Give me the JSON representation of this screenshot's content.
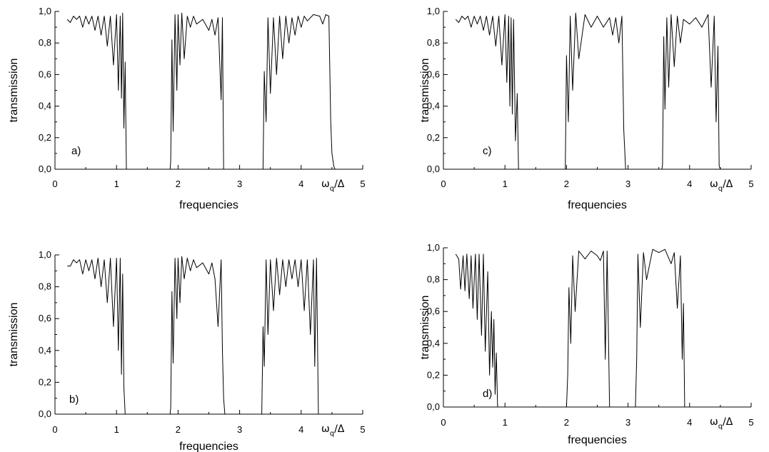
{
  "figure": {
    "xlabel": "frequencies",
    "ylabel": "transmission",
    "xunit_label": "ω",
    "xunit_sub": "q",
    "xunit_tail": "/Δ"
  },
  "chart_data": [
    {
      "type": "line",
      "panel_label": "a)",
      "xlabel": "frequencies",
      "ylabel": "transmission",
      "xlim": [
        0,
        5
      ],
      "ylim": [
        0,
        1
      ],
      "xticks": [
        "0",
        "1",
        "2",
        "3",
        "4",
        "5"
      ],
      "yticks": [
        "0,0",
        "0,2",
        "0,4",
        "0,6",
        "0,8",
        "1,0"
      ],
      "grid": false,
      "series": [
        {
          "x": [
            0.2,
            0.25,
            0.3,
            0.35,
            0.4,
            0.45,
            0.5,
            0.55,
            0.6,
            0.65,
            0.7,
            0.75,
            0.8,
            0.85,
            0.9,
            0.95,
            1.0,
            1.03,
            1.06,
            1.08,
            1.1,
            1.12,
            1.14,
            1.16,
            1.18,
            1.2,
            1.87,
            1.88,
            1.9,
            1.92,
            1.95,
            1.98,
            2.0,
            2.03,
            2.06,
            2.1,
            2.15,
            2.2,
            2.25,
            2.3,
            2.4,
            2.5,
            2.55,
            2.6,
            2.65,
            2.7,
            2.72,
            2.74,
            2.76,
            2.78,
            3.38,
            3.4,
            3.43,
            3.46,
            3.5,
            3.55,
            3.6,
            3.65,
            3.7,
            3.75,
            3.8,
            3.85,
            3.9,
            3.95,
            4.0,
            4.05,
            4.1,
            4.2,
            4.3,
            4.35,
            4.4,
            4.45,
            4.48,
            4.5,
            4.53,
            4.55
          ],
          "y": [
            0.95,
            0.93,
            0.97,
            0.95,
            0.97,
            0.9,
            0.97,
            0.92,
            0.97,
            0.88,
            0.97,
            0.85,
            0.97,
            0.78,
            0.97,
            0.66,
            0.98,
            0.5,
            0.97,
            0.45,
            0.99,
            0.26,
            0.68,
            0.0,
            0.0,
            0.0,
            0.0,
            0.05,
            0.82,
            0.24,
            0.98,
            0.5,
            0.98,
            0.66,
            0.99,
            0.7,
            0.97,
            0.9,
            0.97,
            0.92,
            0.95,
            0.88,
            0.95,
            0.85,
            0.96,
            0.44,
            0.96,
            0.0,
            0.0,
            0.0,
            0.0,
            0.62,
            0.3,
            0.96,
            0.48,
            0.96,
            0.6,
            0.97,
            0.7,
            0.97,
            0.8,
            0.96,
            0.85,
            0.97,
            0.9,
            0.97,
            0.94,
            0.98,
            0.97,
            0.92,
            0.98,
            0.97,
            0.3,
            0.1,
            0.02,
            0.0
          ]
        }
      ]
    },
    {
      "type": "line",
      "panel_label": "c)",
      "xlabel": "frequencies",
      "ylabel": "transmission",
      "xlim": [
        0,
        5
      ],
      "ylim": [
        0,
        1
      ],
      "xticks": [
        "0",
        "1",
        "2",
        "3",
        "4",
        "5"
      ],
      "yticks": [
        "0,0",
        "0,2",
        "0,4",
        "0,6",
        "0,8",
        "1,0"
      ],
      "grid": false,
      "series": [
        {
          "x": [
            0.2,
            0.25,
            0.3,
            0.35,
            0.4,
            0.45,
            0.5,
            0.55,
            0.6,
            0.65,
            0.7,
            0.75,
            0.8,
            0.85,
            0.9,
            0.95,
            1.0,
            1.03,
            1.06,
            1.08,
            1.1,
            1.12,
            1.14,
            1.17,
            1.2,
            1.22,
            1.25,
            1.98,
            2.0,
            2.03,
            2.06,
            2.1,
            2.15,
            2.2,
            2.3,
            2.4,
            2.5,
            2.6,
            2.7,
            2.75,
            2.8,
            2.85,
            2.9,
            2.93,
            2.96,
            3.55,
            3.56,
            3.58,
            3.6,
            3.63,
            3.66,
            3.7,
            3.75,
            3.8,
            3.85,
            3.9,
            4.0,
            4.1,
            4.2,
            4.3,
            4.35,
            4.4,
            4.43,
            4.46,
            4.48,
            4.5
          ],
          "y": [
            0.95,
            0.93,
            0.97,
            0.95,
            0.97,
            0.9,
            0.97,
            0.92,
            0.97,
            0.88,
            0.97,
            0.85,
            0.97,
            0.78,
            0.97,
            0.66,
            0.98,
            0.55,
            0.97,
            0.4,
            0.96,
            0.35,
            0.95,
            0.18,
            0.48,
            0.0,
            0.0,
            0.0,
            0.72,
            0.3,
            0.97,
            0.5,
            0.99,
            0.7,
            0.98,
            0.9,
            0.97,
            0.9,
            0.96,
            0.85,
            0.96,
            0.8,
            0.97,
            0.25,
            0.0,
            0.0,
            0.03,
            0.84,
            0.38,
            0.96,
            0.52,
            0.98,
            0.65,
            0.97,
            0.8,
            0.95,
            0.92,
            0.96,
            0.9,
            0.98,
            0.52,
            0.97,
            0.3,
            0.78,
            0.02,
            0.0
          ]
        }
      ]
    },
    {
      "type": "line",
      "panel_label": "b)",
      "xlabel": "frequencies",
      "ylabel": "transmission",
      "xlim": [
        0,
        5
      ],
      "ylim": [
        0,
        1
      ],
      "xticks": [
        "0",
        "1",
        "2",
        "3",
        "4",
        "5"
      ],
      "yticks": [
        "0,0",
        "0,2",
        "0,4",
        "0,6",
        "0,8",
        "1,0"
      ],
      "grid": false,
      "series": [
        {
          "x": [
            0.2,
            0.25,
            0.3,
            0.35,
            0.4,
            0.45,
            0.5,
            0.55,
            0.6,
            0.65,
            0.7,
            0.75,
            0.8,
            0.85,
            0.9,
            0.95,
            1.0,
            1.03,
            1.06,
            1.08,
            1.1,
            1.12,
            1.14,
            1.87,
            1.88,
            1.9,
            1.92,
            1.95,
            1.98,
            2.0,
            2.03,
            2.06,
            2.1,
            2.15,
            2.2,
            2.25,
            2.3,
            2.4,
            2.5,
            2.55,
            2.6,
            2.65,
            2.7,
            2.72,
            2.74,
            2.76,
            3.36,
            3.38,
            3.4,
            3.43,
            3.46,
            3.5,
            3.55,
            3.6,
            3.65,
            3.7,
            3.75,
            3.8,
            3.85,
            3.9,
            3.95,
            4.0,
            4.05,
            4.1,
            4.15,
            4.2,
            4.22,
            4.25,
            4.28
          ],
          "y": [
            0.93,
            0.93,
            0.97,
            0.95,
            0.97,
            0.88,
            0.97,
            0.9,
            0.97,
            0.85,
            0.98,
            0.8,
            0.97,
            0.7,
            0.98,
            0.55,
            0.98,
            0.4,
            0.98,
            0.25,
            0.88,
            0.17,
            0.0,
            0.0,
            0.04,
            0.77,
            0.32,
            0.98,
            0.6,
            0.98,
            0.7,
            0.99,
            0.85,
            0.98,
            0.9,
            0.97,
            0.92,
            0.95,
            0.88,
            0.95,
            0.85,
            0.55,
            0.97,
            0.4,
            0.1,
            0.0,
            0.0,
            0.55,
            0.3,
            0.97,
            0.5,
            0.97,
            0.65,
            0.98,
            0.75,
            0.97,
            0.8,
            0.97,
            0.85,
            0.97,
            0.8,
            0.97,
            0.65,
            0.97,
            0.5,
            0.97,
            0.3,
            0.98,
            0.0
          ]
        }
      ]
    },
    {
      "type": "line",
      "panel_label": "d)",
      "xlabel": "frequencies",
      "ylabel": "transmission",
      "xlim": [
        0,
        5
      ],
      "ylim": [
        0,
        1
      ],
      "xticks": [
        "0",
        "1",
        "2",
        "3",
        "4",
        "5"
      ],
      "yticks": [
        "0,0",
        "0,2",
        "0,4",
        "0,6",
        "0,8",
        "1,0"
      ],
      "grid": false,
      "series": [
        {
          "x": [
            0.2,
            0.25,
            0.28,
            0.32,
            0.35,
            0.38,
            0.42,
            0.45,
            0.48,
            0.52,
            0.55,
            0.58,
            0.62,
            0.65,
            0.68,
            0.72,
            0.75,
            0.78,
            0.8,
            0.82,
            0.84,
            0.86,
            0.88,
            2.0,
            2.02,
            2.04,
            2.07,
            2.1,
            2.14,
            2.2,
            2.3,
            2.4,
            2.5,
            2.55,
            2.6,
            2.63,
            2.66,
            2.7,
            3.12,
            3.14,
            3.16,
            3.2,
            3.25,
            3.3,
            3.4,
            3.5,
            3.6,
            3.7,
            3.75,
            3.8,
            3.85,
            3.88,
            3.9,
            3.92
          ],
          "y": [
            0.96,
            0.93,
            0.74,
            0.95,
            0.73,
            0.96,
            0.68,
            0.95,
            0.62,
            0.96,
            0.55,
            0.96,
            0.45,
            0.96,
            0.35,
            0.85,
            0.2,
            0.6,
            0.25,
            0.55,
            0.08,
            0.34,
            0.0,
            0.0,
            0.2,
            0.75,
            0.4,
            0.95,
            0.6,
            0.98,
            0.93,
            0.98,
            0.95,
            0.92,
            0.98,
            0.3,
            0.98,
            0.0,
            0.0,
            0.3,
            0.96,
            0.5,
            0.97,
            0.8,
            0.99,
            0.97,
            0.99,
            0.9,
            0.97,
            0.62,
            0.95,
            0.3,
            0.65,
            0.0
          ]
        }
      ]
    }
  ]
}
